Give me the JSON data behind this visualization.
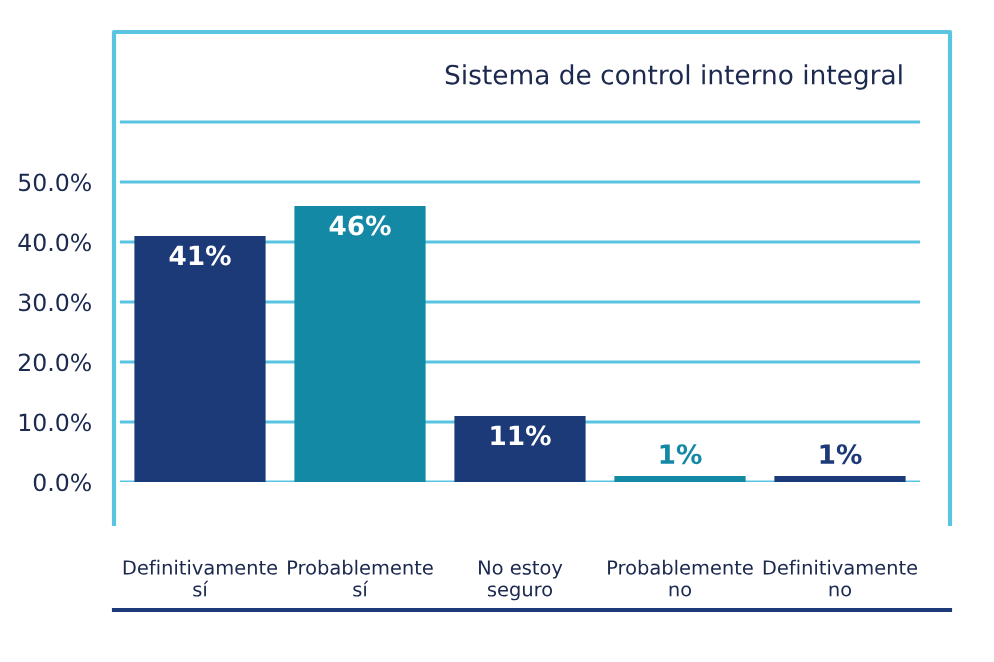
{
  "chart_data": {
    "type": "bar",
    "title": "Sistema de control interno integral",
    "categories": [
      "Definitivamente\nsí",
      "Probablemente\nsí",
      "No estoy\nseguro",
      "Probablemente\nno",
      "Definitivamente\nno"
    ],
    "values": [
      41,
      46,
      11,
      1,
      1
    ],
    "colors": [
      "#1d3a78",
      "#1489a5",
      "#1d3a78",
      "#1489a5",
      "#1d3a78"
    ],
    "value_labels": [
      "41%",
      "46%",
      "11%",
      "1%",
      "1%"
    ],
    "ylim": [
      0,
      75
    ],
    "yticks": [
      {
        "value": 0,
        "label": "0.0%"
      },
      {
        "value": 10,
        "label": "10.0%"
      },
      {
        "value": 20,
        "label": "20.0%"
      },
      {
        "value": 30,
        "label": "30.0%"
      },
      {
        "value": 40,
        "label": "40.0%"
      },
      {
        "value": 50,
        "label": "50.0%"
      },
      {
        "value": 60,
        "label": null
      }
    ],
    "grid": "y",
    "legend": false
  }
}
